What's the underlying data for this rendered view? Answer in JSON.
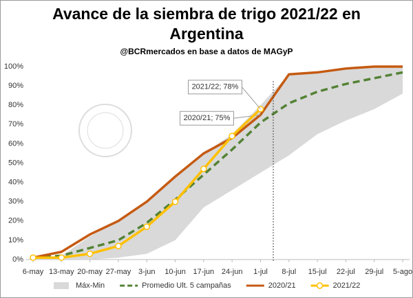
{
  "chart_data": {
    "type": "line",
    "title": "Avance de la siembra de trigo 2021/22 en Argentina",
    "subtitle": "@BCRmercados en base a datos de MAGyP",
    "categories": [
      "6-may",
      "13-may",
      "20-may",
      "27-may",
      "3-jun",
      "10-jun",
      "17-jun",
      "24-jun",
      "1-jul",
      "8-jul",
      "15-jul",
      "22-jul",
      "29-jul",
      "5-ago"
    ],
    "ylim": [
      0,
      100
    ],
    "yticks": [
      {
        "value": 0,
        "label": "0%"
      },
      {
        "value": 10,
        "label": "10%"
      },
      {
        "value": 20,
        "label": "20%"
      },
      {
        "value": 30,
        "label": "30%"
      },
      {
        "value": 40,
        "label": "40%"
      },
      {
        "value": 50,
        "label": "50%"
      },
      {
        "value": 60,
        "label": "60%"
      },
      {
        "value": 70,
        "label": "70%"
      },
      {
        "value": 80,
        "label": "80%"
      },
      {
        "value": 90,
        "label": "90%"
      },
      {
        "value": 100,
        "label": "100%"
      }
    ],
    "grid": false,
    "legend": "bottom",
    "series": [
      {
        "name": "Máx-Min",
        "type": "band",
        "color": "#d9d9d9",
        "values": [
          1,
          2,
          12,
          20,
          30,
          43,
          55,
          65,
          80,
          96,
          97,
          99,
          100,
          100
        ],
        "low": [
          0,
          0,
          0,
          1,
          3,
          10,
          27,
          36,
          45,
          54,
          65,
          72,
          78,
          86
        ]
      },
      {
        "name": "Promedio Ult. 5 campañas",
        "type": "line",
        "color": "#548235",
        "dashed": true,
        "values": [
          1,
          2,
          6,
          10,
          19,
          31,
          44,
          57,
          71,
          81,
          87,
          91,
          94,
          97
        ]
      },
      {
        "name": "2020/21",
        "type": "line",
        "color": "#c55a11",
        "values": [
          1,
          4,
          13,
          20,
          30,
          43,
          55,
          63,
          75,
          96,
          97,
          99,
          100,
          100
        ],
        "value_labels": [
          null,
          null,
          null,
          null,
          null,
          null,
          null,
          null,
          "2020/21; 75%",
          null,
          null,
          null,
          null,
          null
        ]
      },
      {
        "name": "2021/22",
        "type": "line",
        "color": "#ffc000",
        "markers": true,
        "values": [
          1,
          1,
          3,
          7,
          17,
          30,
          47,
          64,
          78,
          null,
          null,
          null,
          null,
          null
        ],
        "value_labels": [
          null,
          null,
          null,
          null,
          null,
          null,
          null,
          null,
          "2021/22; 78%",
          null,
          null,
          null,
          null,
          null
        ]
      }
    ]
  }
}
